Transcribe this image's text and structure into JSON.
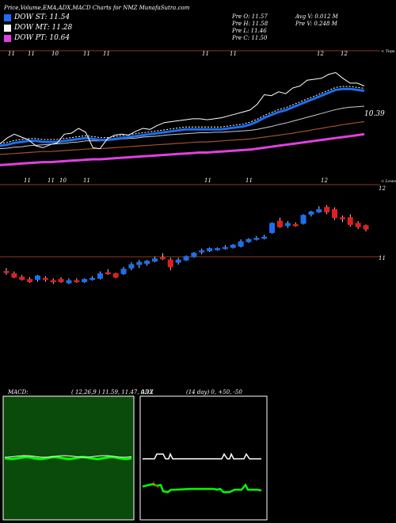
{
  "header": {
    "title": "Price,Volume,EMA,ADX,MACD Charts for NMZ MunafaSutra.com"
  },
  "legend": [
    {
      "label": "DOW ST: 11.54",
      "color": "#1e6ef0"
    },
    {
      "label": "DOW MT: 11.28",
      "color": "#ffffff"
    },
    {
      "label": "DOW PT: 10.64",
      "color": "#e040e0"
    }
  ],
  "ohlc": {
    "open": "Pre   O: 11.57",
    "high": "Pre   H: 11.58",
    "low": "Pre   L: 11.46",
    "close": "Pre   C: 11.50",
    "avg_volume": "Avg V: 0.012  M",
    "pre_volume": "Pre   V: 0.248 M"
  },
  "colors": {
    "up": "#1e6ef0",
    "down": "#e02020",
    "price_line": "#ffffff",
    "ema_fast": "#1e6ef0",
    "ema_pink": "#e040e0",
    "ema_brown": "#a0522d",
    "macd_bg": "#0a4a0a",
    "macd_line": "#00ff00",
    "adx_line": "#00ff00",
    "adx_di": "#ffffff"
  },
  "chart_data": [
    {
      "type": "line",
      "title": "Price with EMAs",
      "y_label_right": "10.39",
      "top_ticks": [
        "11",
        "11",
        "10",
        "11",
        "11",
        "11",
        "11",
        "12",
        "12"
      ],
      "bottom_ticks": [
        "11",
        "11",
        "10",
        "11",
        "11",
        "11",
        "12"
      ],
      "corner_top": "< Tops",
      "corner_bottom": "< Lows",
      "ylim": [
        10.0,
        12.4
      ],
      "price": [
        10.6,
        10.72,
        10.8,
        10.74,
        10.68,
        10.56,
        10.52,
        10.58,
        10.62,
        10.8,
        10.82,
        10.92,
        10.84,
        10.52,
        10.5,
        10.7,
        10.78,
        10.8,
        10.78,
        10.86,
        10.92,
        10.9,
        10.98,
        11.04,
        11.06,
        11.08,
        11.1,
        11.12,
        11.12,
        11.1,
        11.12,
        11.14,
        11.18,
        11.22,
        11.26,
        11.3,
        11.42,
        11.62,
        11.6,
        11.68,
        11.64,
        11.76,
        11.8,
        11.92,
        11.94,
        11.96,
        12.04,
        12.08,
        11.96,
        11.86,
        11.86,
        11.8
      ],
      "ema_fast": [
        10.56,
        10.58,
        10.62,
        10.64,
        10.66,
        10.66,
        10.64,
        10.64,
        10.64,
        10.66,
        10.68,
        10.7,
        10.72,
        10.7,
        10.68,
        10.68,
        10.7,
        10.72,
        10.74,
        10.76,
        10.78,
        10.8,
        10.82,
        10.84,
        10.86,
        10.88,
        10.9,
        10.9,
        10.9,
        10.9,
        10.9,
        10.9,
        10.92,
        10.94,
        10.96,
        11.0,
        11.06,
        11.14,
        11.2,
        11.26,
        11.3,
        11.36,
        11.42,
        11.48,
        11.54,
        11.6,
        11.66,
        11.72,
        11.74,
        11.74,
        11.72,
        11.7
      ],
      "ema_mid": [
        10.5,
        10.51,
        10.53,
        10.54,
        10.56,
        10.57,
        10.58,
        10.59,
        10.6,
        10.61,
        10.63,
        10.64,
        10.66,
        10.66,
        10.66,
        10.67,
        10.68,
        10.7,
        10.71,
        10.72,
        10.74,
        10.75,
        10.76,
        10.78,
        10.79,
        10.8,
        10.81,
        10.82,
        10.83,
        10.83,
        10.84,
        10.84,
        10.85,
        10.86,
        10.87,
        10.88,
        10.9,
        10.93,
        10.96,
        11.0,
        11.03,
        11.07,
        11.11,
        11.15,
        11.19,
        11.23,
        11.27,
        11.31,
        11.34,
        11.36,
        11.37,
        11.38
      ],
      "ema_brown": [
        10.38,
        10.39,
        10.4,
        10.41,
        10.42,
        10.43,
        10.44,
        10.44,
        10.45,
        10.46,
        10.47,
        10.48,
        10.49,
        10.5,
        10.5,
        10.51,
        10.52,
        10.53,
        10.54,
        10.55,
        10.56,
        10.57,
        10.58,
        10.59,
        10.6,
        10.61,
        10.62,
        10.63,
        10.64,
        10.64,
        10.65,
        10.66,
        10.67,
        10.68,
        10.69,
        10.7,
        10.72,
        10.74,
        10.76,
        10.78,
        10.8,
        10.82,
        10.85,
        10.87,
        10.9,
        10.92,
        10.95,
        10.97,
        11.0,
        11.02,
        11.04,
        11.06
      ],
      "ema_pink": [
        10.16,
        10.17,
        10.18,
        10.19,
        10.2,
        10.21,
        10.22,
        10.22,
        10.23,
        10.24,
        10.25,
        10.26,
        10.27,
        10.28,
        10.28,
        10.29,
        10.3,
        10.31,
        10.32,
        10.33,
        10.34,
        10.35,
        10.36,
        10.37,
        10.38,
        10.39,
        10.4,
        10.41,
        10.42,
        10.42,
        10.43,
        10.44,
        10.45,
        10.46,
        10.47,
        10.48,
        10.5,
        10.52,
        10.54,
        10.56,
        10.58,
        10.6,
        10.62,
        10.64,
        10.66,
        10.68,
        10.7,
        10.72,
        10.74,
        10.76,
        10.78,
        10.8
      ]
    },
    {
      "type": "candlestick",
      "title": "Candles",
      "y_ticks": [
        "12",
        "11"
      ],
      "ylim": [
        10.4,
        12.2
      ],
      "candles": [
        {
          "o": 10.78,
          "h": 10.84,
          "l": 10.72,
          "c": 10.76,
          "up": false
        },
        {
          "o": 10.74,
          "h": 10.78,
          "l": 10.66,
          "c": 10.68,
          "up": false
        },
        {
          "o": 10.68,
          "h": 10.72,
          "l": 10.62,
          "c": 10.64,
          "up": false
        },
        {
          "o": 10.64,
          "h": 10.68,
          "l": 10.58,
          "c": 10.6,
          "up": false
        },
        {
          "o": 10.64,
          "h": 10.72,
          "l": 10.6,
          "c": 10.7,
          "up": true
        },
        {
          "o": 10.66,
          "h": 10.7,
          "l": 10.6,
          "c": 10.64,
          "up": false
        },
        {
          "o": 10.62,
          "h": 10.66,
          "l": 10.56,
          "c": 10.6,
          "up": false
        },
        {
          "o": 10.64,
          "h": 10.68,
          "l": 10.58,
          "c": 10.6,
          "up": false
        },
        {
          "o": 10.58,
          "h": 10.66,
          "l": 10.56,
          "c": 10.62,
          "up": true
        },
        {
          "o": 10.62,
          "h": 10.66,
          "l": 10.58,
          "c": 10.6,
          "up": false
        },
        {
          "o": 10.6,
          "h": 10.66,
          "l": 10.58,
          "c": 10.64,
          "up": true
        },
        {
          "o": 10.64,
          "h": 10.7,
          "l": 10.62,
          "c": 10.66,
          "up": true
        },
        {
          "o": 10.66,
          "h": 10.78,
          "l": 10.64,
          "c": 10.74,
          "up": true
        },
        {
          "o": 10.76,
          "h": 10.82,
          "l": 10.72,
          "c": 10.74,
          "up": false
        },
        {
          "o": 10.74,
          "h": 10.76,
          "l": 10.66,
          "c": 10.68,
          "up": false
        },
        {
          "o": 10.74,
          "h": 10.86,
          "l": 10.72,
          "c": 10.82,
          "up": true
        },
        {
          "o": 10.84,
          "h": 10.94,
          "l": 10.8,
          "c": 10.9,
          "up": true
        },
        {
          "o": 10.9,
          "h": 10.98,
          "l": 10.84,
          "c": 10.94,
          "up": true
        },
        {
          "o": 10.92,
          "h": 10.98,
          "l": 10.88,
          "c": 10.96,
          "up": true
        },
        {
          "o": 10.96,
          "h": 11.04,
          "l": 10.94,
          "c": 11.0,
          "up": true
        },
        {
          "o": 11.02,
          "h": 11.1,
          "l": 10.98,
          "c": 11.0,
          "up": false
        },
        {
          "o": 10.98,
          "h": 11.02,
          "l": 10.8,
          "c": 10.86,
          "up": false
        },
        {
          "o": 10.94,
          "h": 11.02,
          "l": 10.9,
          "c": 10.98,
          "up": true
        },
        {
          "o": 10.98,
          "h": 11.06,
          "l": 10.96,
          "c": 11.04,
          "up": true
        },
        {
          "o": 11.04,
          "h": 11.12,
          "l": 11.02,
          "c": 11.1,
          "up": true
        },
        {
          "o": 11.12,
          "h": 11.18,
          "l": 11.08,
          "c": 11.14,
          "up": true
        },
        {
          "o": 11.14,
          "h": 11.2,
          "l": 11.12,
          "c": 11.18,
          "up": true
        },
        {
          "o": 11.16,
          "h": 11.2,
          "l": 11.14,
          "c": 11.18,
          "up": true
        },
        {
          "o": 11.18,
          "h": 11.24,
          "l": 11.16,
          "c": 11.2,
          "up": true
        },
        {
          "o": 11.2,
          "h": 11.26,
          "l": 11.18,
          "c": 11.24,
          "up": true
        },
        {
          "o": 11.22,
          "h": 11.34,
          "l": 11.2,
          "c": 11.3,
          "up": true
        },
        {
          "o": 11.3,
          "h": 11.36,
          "l": 11.28,
          "c": 11.34,
          "up": true
        },
        {
          "o": 11.34,
          "h": 11.4,
          "l": 11.32,
          "c": 11.36,
          "up": true
        },
        {
          "o": 11.36,
          "h": 11.42,
          "l": 11.34,
          "c": 11.38,
          "up": true
        },
        {
          "o": 11.46,
          "h": 11.64,
          "l": 11.44,
          "c": 11.62,
          "up": true
        },
        {
          "o": 11.66,
          "h": 11.72,
          "l": 11.54,
          "c": 11.56,
          "up": false
        },
        {
          "o": 11.58,
          "h": 11.66,
          "l": 11.54,
          "c": 11.62,
          "up": true
        },
        {
          "o": 11.6,
          "h": 11.64,
          "l": 11.56,
          "c": 11.6,
          "up": false
        },
        {
          "o": 11.62,
          "h": 11.78,
          "l": 11.6,
          "c": 11.76,
          "up": true
        },
        {
          "o": 11.78,
          "h": 11.84,
          "l": 11.74,
          "c": 11.82,
          "up": true
        },
        {
          "o": 11.82,
          "h": 11.92,
          "l": 11.8,
          "c": 11.86,
          "up": true
        },
        {
          "o": 11.9,
          "h": 11.94,
          "l": 11.78,
          "c": 11.82,
          "up": false
        },
        {
          "o": 11.86,
          "h": 11.9,
          "l": 11.68,
          "c": 11.72,
          "up": false
        },
        {
          "o": 11.72,
          "h": 11.76,
          "l": 11.64,
          "c": 11.7,
          "up": false
        },
        {
          "o": 11.72,
          "h": 11.78,
          "l": 11.56,
          "c": 11.6,
          "up": false
        },
        {
          "o": 11.62,
          "h": 11.66,
          "l": 11.52,
          "c": 11.56,
          "up": false
        },
        {
          "o": 11.58,
          "h": 11.6,
          "l": 11.48,
          "c": 11.52,
          "up": false
        }
      ]
    },
    {
      "type": "line",
      "title": "MACD",
      "label": "MACD:",
      "params": "( 12,26,9 ) 11.59, 11.47, 0.12"
    },
    {
      "type": "line",
      "title": "ADX",
      "label": "ADX",
      "params": "(14 day) 0, +50, -50"
    }
  ]
}
